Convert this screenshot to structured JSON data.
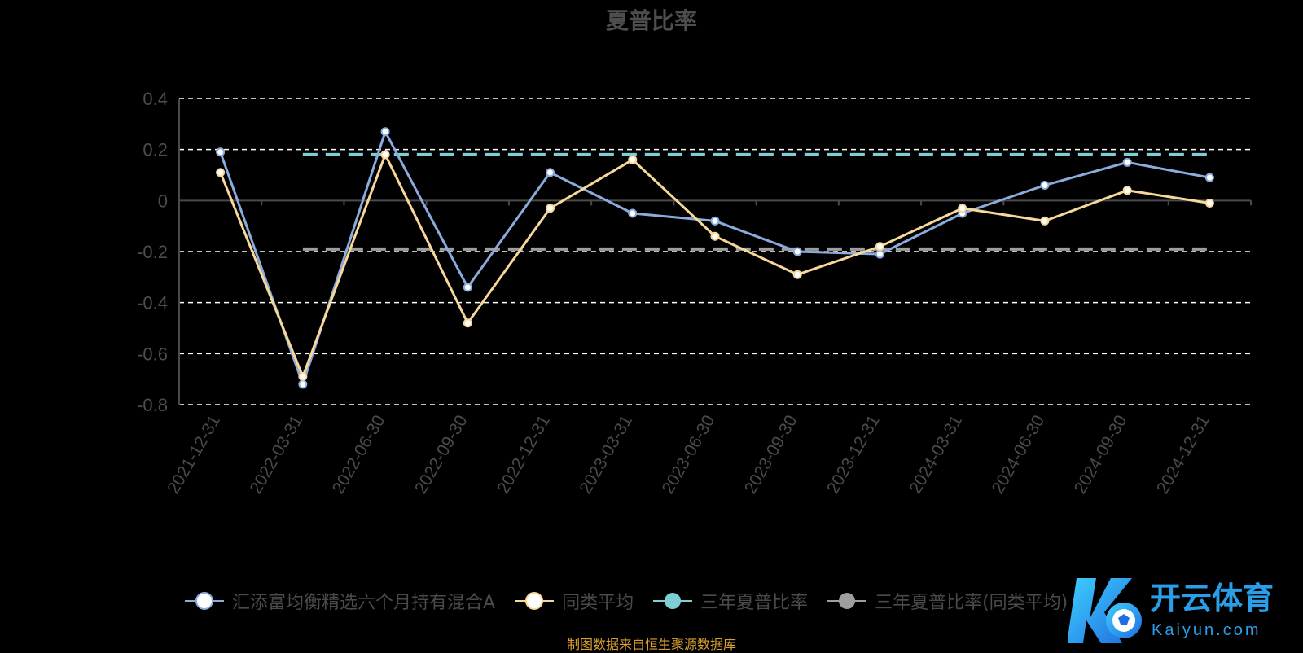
{
  "chart_data": {
    "type": "line",
    "title": "夏普比率",
    "categories": [
      "2021-12-31",
      "2022-03-31",
      "2022-06-30",
      "2022-09-30",
      "2022-12-31",
      "2023-03-31",
      "2023-06-30",
      "2023-09-30",
      "2023-12-31",
      "2024-03-31",
      "2024-06-30",
      "2024-09-30",
      "2024-12-31"
    ],
    "ylim": [
      -0.8,
      0.4
    ],
    "yticks": [
      "0.4",
      "0.2",
      "0",
      "-0.2",
      "-0.4",
      "-0.6",
      "-0.8"
    ],
    "grid": true,
    "legend_position": "bottom",
    "series": [
      {
        "name": "汇添富均衡精选六个月持有混合A",
        "color": "#8aabdc",
        "values": [
          0.19,
          -0.72,
          0.27,
          -0.34,
          0.11,
          -0.05,
          -0.08,
          -0.2,
          -0.21,
          -0.05,
          0.06,
          0.15,
          0.09
        ]
      },
      {
        "name": "同类平均",
        "color": "#f8d79a",
        "values": [
          0.11,
          -0.69,
          0.18,
          -0.48,
          -0.03,
          0.16,
          -0.14,
          -0.29,
          -0.18,
          -0.03,
          -0.08,
          0.04,
          -0.01
        ]
      },
      {
        "name": "三年夏普比率",
        "color": "#7ecfd4",
        "reference": 0.18
      },
      {
        "name": "三年夏普比率(同类平均)",
        "color": "#9e9e9e",
        "reference": -0.19
      }
    ],
    "source": "制图数据来自恒生聚源数据库"
  },
  "watermark": {
    "brand": "开云体育",
    "url": "Kaiyun.com"
  }
}
